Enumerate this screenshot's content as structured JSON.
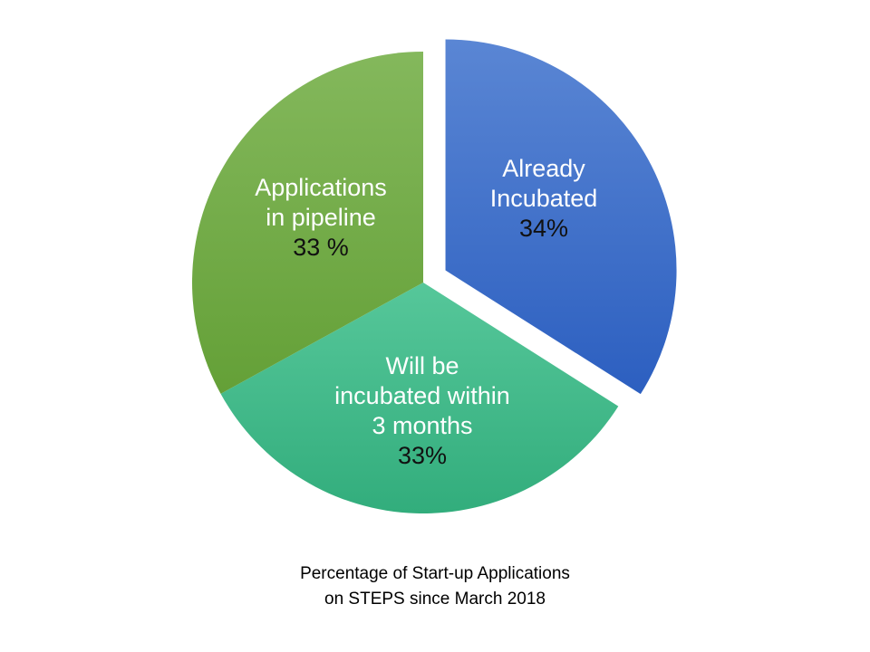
{
  "chart_data": {
    "type": "pie",
    "title": "",
    "slices": [
      {
        "label_lines": [
          "Already",
          "Incubated"
        ],
        "percent_text": "34%",
        "value": 34,
        "color_top": "#5a86d4",
        "color_bottom": "#2c5fc0"
      },
      {
        "label_lines": [
          "Will be",
          "incubated within",
          "3 months"
        ],
        "percent_text": "33%",
        "value": 33,
        "color_top": "#56c79a",
        "color_bottom": "#32ad7c"
      },
      {
        "label_lines": [
          "Applications",
          "in pipeline"
        ],
        "percent_text": "33 %",
        "value": 33,
        "color_top": "#84b85c",
        "color_bottom": "#64a037"
      }
    ],
    "exploded_slice": "Already Incubated",
    "caption_lines": [
      "Percentage of Start-up Applications",
      "on STEPS since March 2018"
    ]
  }
}
